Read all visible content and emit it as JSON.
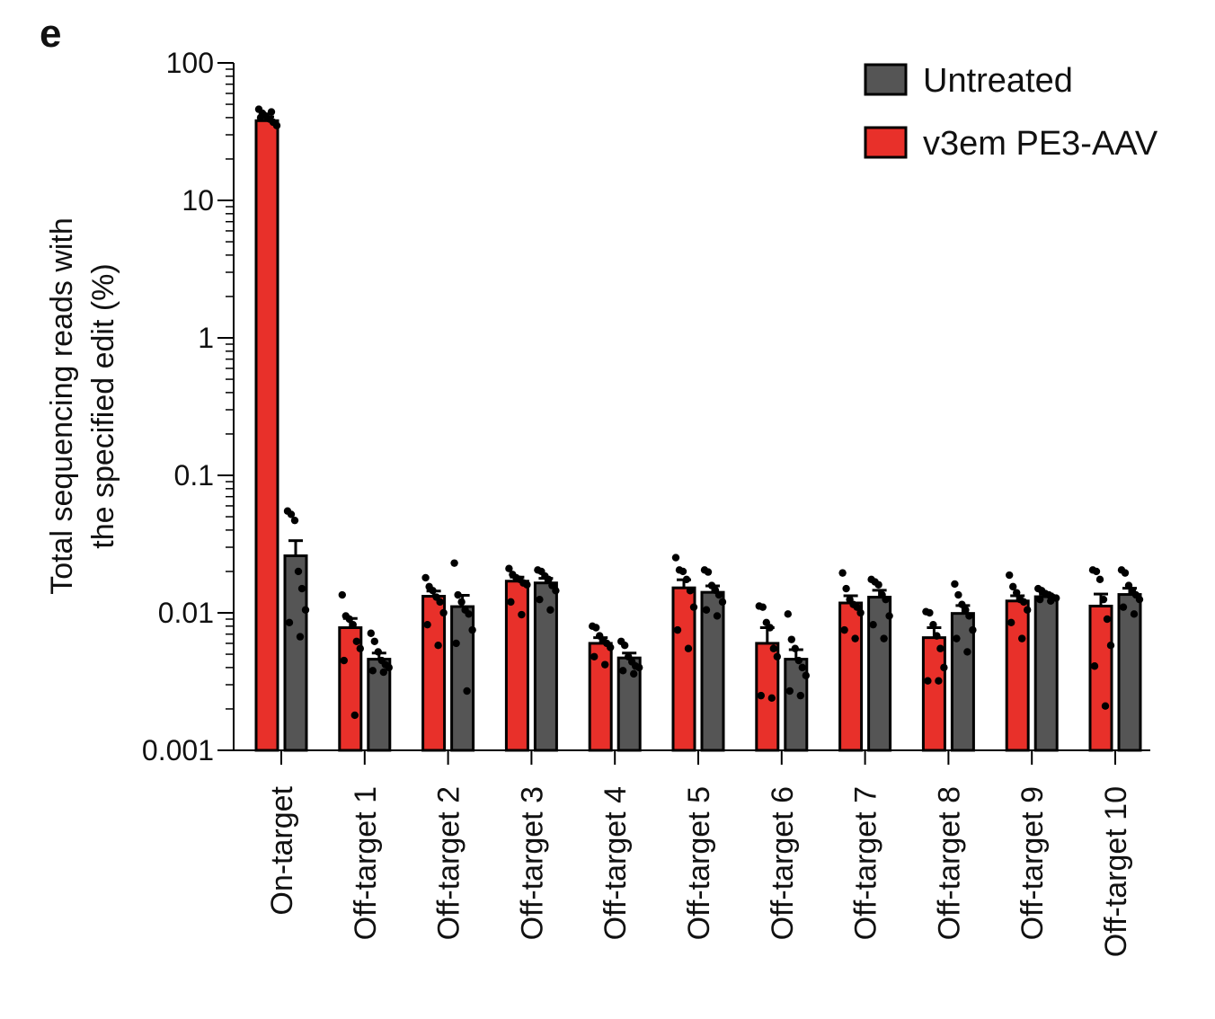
{
  "panel_label": "e",
  "chart_data": {
    "type": "bar",
    "yscale": "log",
    "ylim": [
      0.001,
      100
    ],
    "ylabel_lines": [
      "Total sequencing reads with",
      "the specified edit (%)"
    ],
    "yticks": [
      {
        "value": 100,
        "label": "100"
      },
      {
        "value": 10,
        "label": "10"
      },
      {
        "value": 1,
        "label": "1"
      },
      {
        "value": 0.1,
        "label": "0.1"
      },
      {
        "value": 0.01,
        "label": "0.01"
      },
      {
        "value": 0.001,
        "label": "0.001"
      }
    ],
    "categories": [
      "On-target",
      "Off-target 1",
      "Off-target 2",
      "Off-target 3",
      "Off-target 4",
      "Off-target 5",
      "Off-target 6",
      "Off-target 7",
      "Off-target 8",
      "Off-target 9",
      "Off-target 10"
    ],
    "legend_position": "top-right",
    "series": [
      {
        "name": "v3em PE3-AAV",
        "color": "#e8302a",
        "values": [
          38,
          0.0078,
          0.0132,
          0.017,
          0.006,
          0.0152,
          0.006,
          0.0118,
          0.0066,
          0.0122,
          0.0112
        ],
        "errors": [
          2.5,
          0.0013,
          0.0012,
          0.0012,
          0.0006,
          0.0022,
          0.0018,
          0.0015,
          0.0012,
          0.0011,
          0.0025
        ],
        "points": [
          [
            46,
            43,
            41,
            39,
            37,
            35,
            40,
            44
          ],
          [
            0.0135,
            0.0095,
            0.009,
            0.0082,
            0.0062,
            0.0055,
            0.0045,
            0.0018
          ],
          [
            0.018,
            0.0155,
            0.0145,
            0.013,
            0.012,
            0.01,
            0.0082,
            0.0058
          ],
          [
            0.021,
            0.019,
            0.018,
            0.0175,
            0.0165,
            0.016,
            0.012,
            0.0097
          ],
          [
            0.008,
            0.0078,
            0.0068,
            0.0063,
            0.006,
            0.0056,
            0.0048,
            0.0042
          ],
          [
            0.0252,
            0.0205,
            0.02,
            0.0175,
            0.0145,
            0.011,
            0.0075,
            0.0055
          ],
          [
            0.0112,
            0.011,
            0.0085,
            0.0078,
            0.0055,
            0.0048,
            0.0025,
            0.0024
          ],
          [
            0.0195,
            0.015,
            0.0125,
            0.0115,
            0.011,
            0.01,
            0.0075,
            0.0065
          ],
          [
            0.0102,
            0.01,
            0.0082,
            0.0068,
            0.0055,
            0.004,
            0.0032,
            0.0032
          ],
          [
            0.0188,
            0.0155,
            0.014,
            0.0125,
            0.012,
            0.0105,
            0.0085,
            0.0065
          ],
          [
            0.0205,
            0.02,
            0.0175,
            0.0125,
            0.009,
            0.0058,
            0.0041,
            0.0021
          ]
        ]
      },
      {
        "name": "Untreated",
        "color": "#555555",
        "values": [
          0.026,
          0.0046,
          0.0111,
          0.0165,
          0.0047,
          0.0141,
          0.0046,
          0.013,
          0.0099,
          0.0131,
          0.0136
        ],
        "errors": [
          0.0075,
          0.0005,
          0.0023,
          0.0013,
          0.0004,
          0.0016,
          0.0008,
          0.0016,
          0.0014,
          0.0006,
          0.0015
        ],
        "points": [
          [
            0.055,
            0.052,
            0.047,
            0.02,
            0.015,
            0.0105,
            0.0085,
            0.0067
          ],
          [
            0.0071,
            0.0062,
            0.0052,
            0.0045,
            0.0042,
            0.004,
            0.0038,
            0.0037
          ],
          [
            0.023,
            0.0135,
            0.012,
            0.0105,
            0.0098,
            0.0075,
            0.006,
            0.0027
          ],
          [
            0.0205,
            0.02,
            0.0185,
            0.0175,
            0.0158,
            0.0145,
            0.0125,
            0.0105
          ],
          [
            0.0062,
            0.0058,
            0.0048,
            0.0044,
            0.0041,
            0.004,
            0.0038,
            0.0036
          ],
          [
            0.0205,
            0.0198,
            0.0158,
            0.0146,
            0.0135,
            0.012,
            0.0105,
            0.0095
          ],
          [
            0.0098,
            0.0064,
            0.0055,
            0.0045,
            0.004,
            0.0035,
            0.0027,
            0.0025
          ],
          [
            0.0175,
            0.0168,
            0.016,
            0.0135,
            0.0125,
            0.0095,
            0.0082,
            0.0065
          ],
          [
            0.0162,
            0.0135,
            0.0115,
            0.0105,
            0.0095,
            0.0075,
            0.0065,
            0.0052
          ],
          [
            0.015,
            0.0145,
            0.0138,
            0.0135,
            0.013,
            0.0128,
            0.0125,
            0.0122
          ],
          [
            0.0205,
            0.0195,
            0.0158,
            0.0145,
            0.0135,
            0.0125,
            0.011,
            0.0098
          ]
        ]
      }
    ]
  }
}
